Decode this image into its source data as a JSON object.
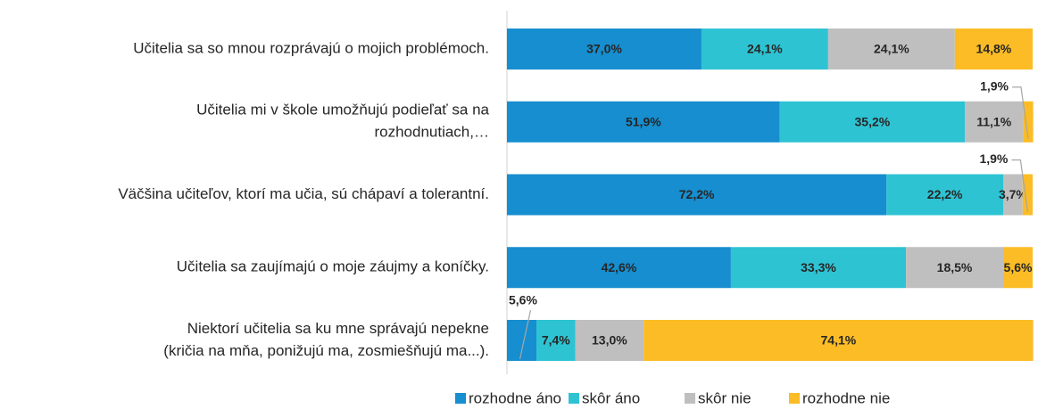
{
  "chart_data": {
    "type": "stacked-bar-horizontal",
    "categories": [
      [
        "Učitelia sa so mnou rozprávajú o mojich problémoch."
      ],
      [
        "Učitelia mi v škole umožňujú podieľať sa na",
        "rozhodnutiach,…"
      ],
      [
        "Väčšina učiteľov, ktorí ma učia, sú chápaví a tolerantní."
      ],
      [
        "Učitelia sa zaujímajú o moje záujmy a koníčky."
      ],
      [
        "Niektorí učitelia sa ku mne správajú nepekne",
        "(kričia na mňa, ponižujú ma, zosmiešňujú ma...)."
      ]
    ],
    "series": [
      {
        "name": "rozhodne áno",
        "color": "#168ecf",
        "values": [
          37.0,
          51.9,
          72.2,
          42.6,
          5.6
        ],
        "value_labels": [
          "37,0%",
          "51,9%",
          "72,2%",
          "42,6%",
          "5,6%"
        ]
      },
      {
        "name": "skôr áno",
        "color": "#2ec3d3",
        "values": [
          24.1,
          35.2,
          22.2,
          33.3,
          7.4
        ],
        "value_labels": [
          "24,1%",
          "35,2%",
          "22,2%",
          "33,3%",
          "7,4%"
        ]
      },
      {
        "name": "skôr nie",
        "color": "#bfbfbf",
        "values": [
          24.1,
          11.1,
          3.7,
          18.5,
          13.0
        ],
        "value_labels": [
          "24,1%",
          "11,1%",
          "3,7%",
          "18,5%",
          "13,0%"
        ]
      },
      {
        "name": "rozhodne nie",
        "color": "#fbbc25",
        "values": [
          14.8,
          1.9,
          1.9,
          5.6,
          74.1
        ],
        "value_labels": [
          "14,8%",
          "1,9%",
          "1,9%",
          "5,6%",
          "74,1%"
        ]
      }
    ],
    "xlim": [
      0,
      100
    ],
    "legend": "bottom"
  }
}
